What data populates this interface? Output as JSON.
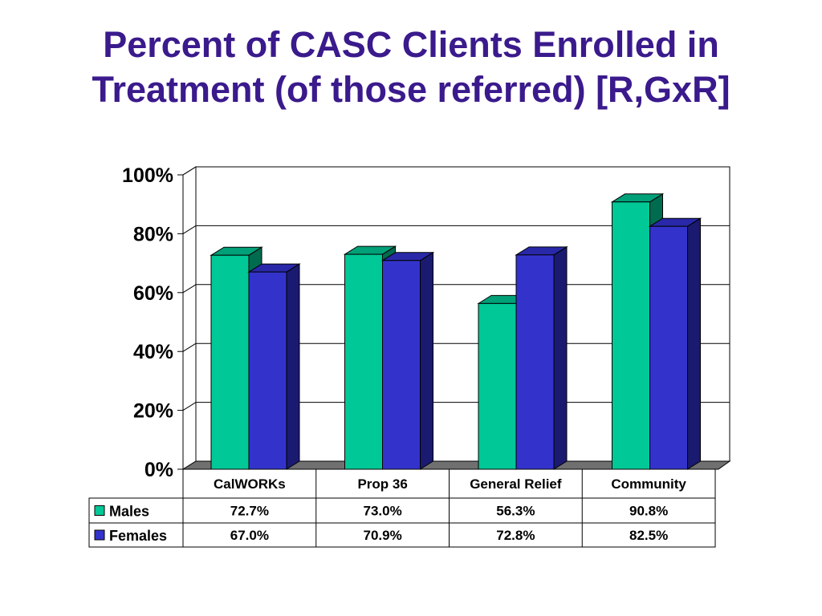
{
  "title_lines": [
    "Percent of CASC Clients Enrolled in",
    "Treatment (of those referred) [R,GxR]"
  ],
  "colors": {
    "title": "#3a1a8c",
    "males": "#00c896",
    "males_top": "#00a078",
    "males_side": "#006b4f",
    "females": "#3333cc",
    "females_top": "#2828a8",
    "females_side": "#1a1a70",
    "floor": "#707070"
  },
  "chart_data": {
    "type": "bar",
    "title": "Percent of CASC Clients Enrolled in Treatment (of those referred) [R,GxR]",
    "categories": [
      "CalWORKs",
      "Prop 36",
      "General Relief",
      "Community"
    ],
    "series": [
      {
        "name": "Males",
        "values": [
          72.7,
          73.0,
          56.3,
          90.8
        ],
        "labels": [
          "72.7%",
          "73.0%",
          "56.3%",
          "90.8%"
        ]
      },
      {
        "name": "Females",
        "values": [
          67.0,
          70.9,
          72.8,
          82.5
        ],
        "labels": [
          "67.0%",
          "70.9%",
          "72.8%",
          "82.5%"
        ]
      }
    ],
    "ylim": [
      0,
      100
    ],
    "yticks": [
      0,
      20,
      40,
      60,
      80,
      100
    ],
    "ytick_labels": [
      "0%",
      "20%",
      "40%",
      "60%",
      "80%",
      "100%"
    ],
    "grid": true,
    "legend": "data table below chart",
    "style": "3d-clustered"
  }
}
